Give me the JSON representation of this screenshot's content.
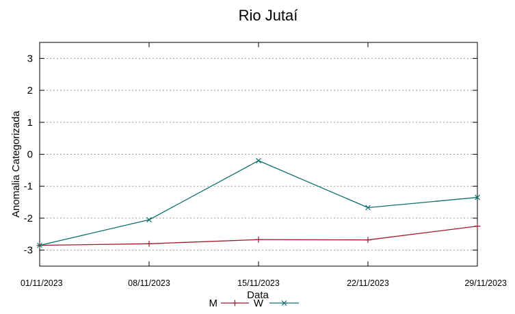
{
  "chart_data": {
    "type": "line",
    "title": "Rio Jutaí",
    "xlabel": "Data",
    "ylabel": "Anomalia Categorizada",
    "x": [
      "01/11/2023",
      "08/11/2023",
      "15/11/2023",
      "22/11/2023",
      "29/11/2023"
    ],
    "ylim": [
      -3.5,
      3.5
    ],
    "yticks": [
      -3,
      -2,
      -1,
      0,
      1,
      2,
      3
    ],
    "grid": true,
    "legend_position": "bottom-center",
    "series": [
      {
        "name": "M",
        "color": "#a0162a",
        "marker": "plus",
        "values": [
          -2.85,
          -2.8,
          -2.67,
          -2.68,
          -2.25
        ]
      },
      {
        "name": "W",
        "color": "#0b6e6e",
        "marker": "cross",
        "values": [
          -2.85,
          -2.05,
          -0.2,
          -1.67,
          -1.35
        ]
      }
    ]
  }
}
